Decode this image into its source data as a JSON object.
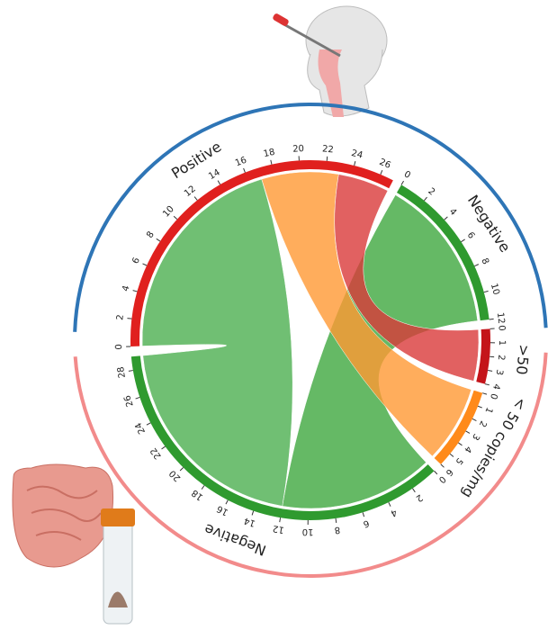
{
  "chart_data": {
    "type": "chord",
    "sectors": [
      {
        "name": "Positive",
        "color": "#e0201e",
        "ticks": [
          0,
          2,
          4,
          6,
          8,
          10,
          12,
          14,
          16,
          18,
          20,
          22,
          24,
          26
        ]
      },
      {
        "name": "Negative",
        "color": "#2f9a2f",
        "ticks": [
          0,
          2,
          4,
          6,
          8,
          10,
          12
        ]
      },
      {
        "name": ">50",
        "color": "#c4141a",
        "ticks": [
          0,
          1,
          2,
          3,
          4
        ]
      },
      {
        "name": "< 50 copies/mg",
        "color": "#ff8a1a",
        "ticks": [
          0,
          1,
          2,
          3,
          4,
          5,
          6
        ]
      },
      {
        "name": "Negative",
        "color": "#2f9a2f",
        "ticks": [
          0,
          2,
          4,
          6,
          8,
          10,
          12,
          14,
          16,
          18,
          20,
          22,
          24,
          26,
          28
        ]
      }
    ],
    "chords": [
      {
        "from": 1,
        "to": 4,
        "value": 12,
        "color": "#3fa83f"
      },
      {
        "from": 0,
        "to": 4,
        "value": 17,
        "color": "#4caf50"
      },
      {
        "from": 0,
        "to": 3,
        "value": 6,
        "color": "#ff9933"
      },
      {
        "from": 0,
        "to": 2,
        "value": 4,
        "color": "#d93a3a"
      }
    ]
  }
}
